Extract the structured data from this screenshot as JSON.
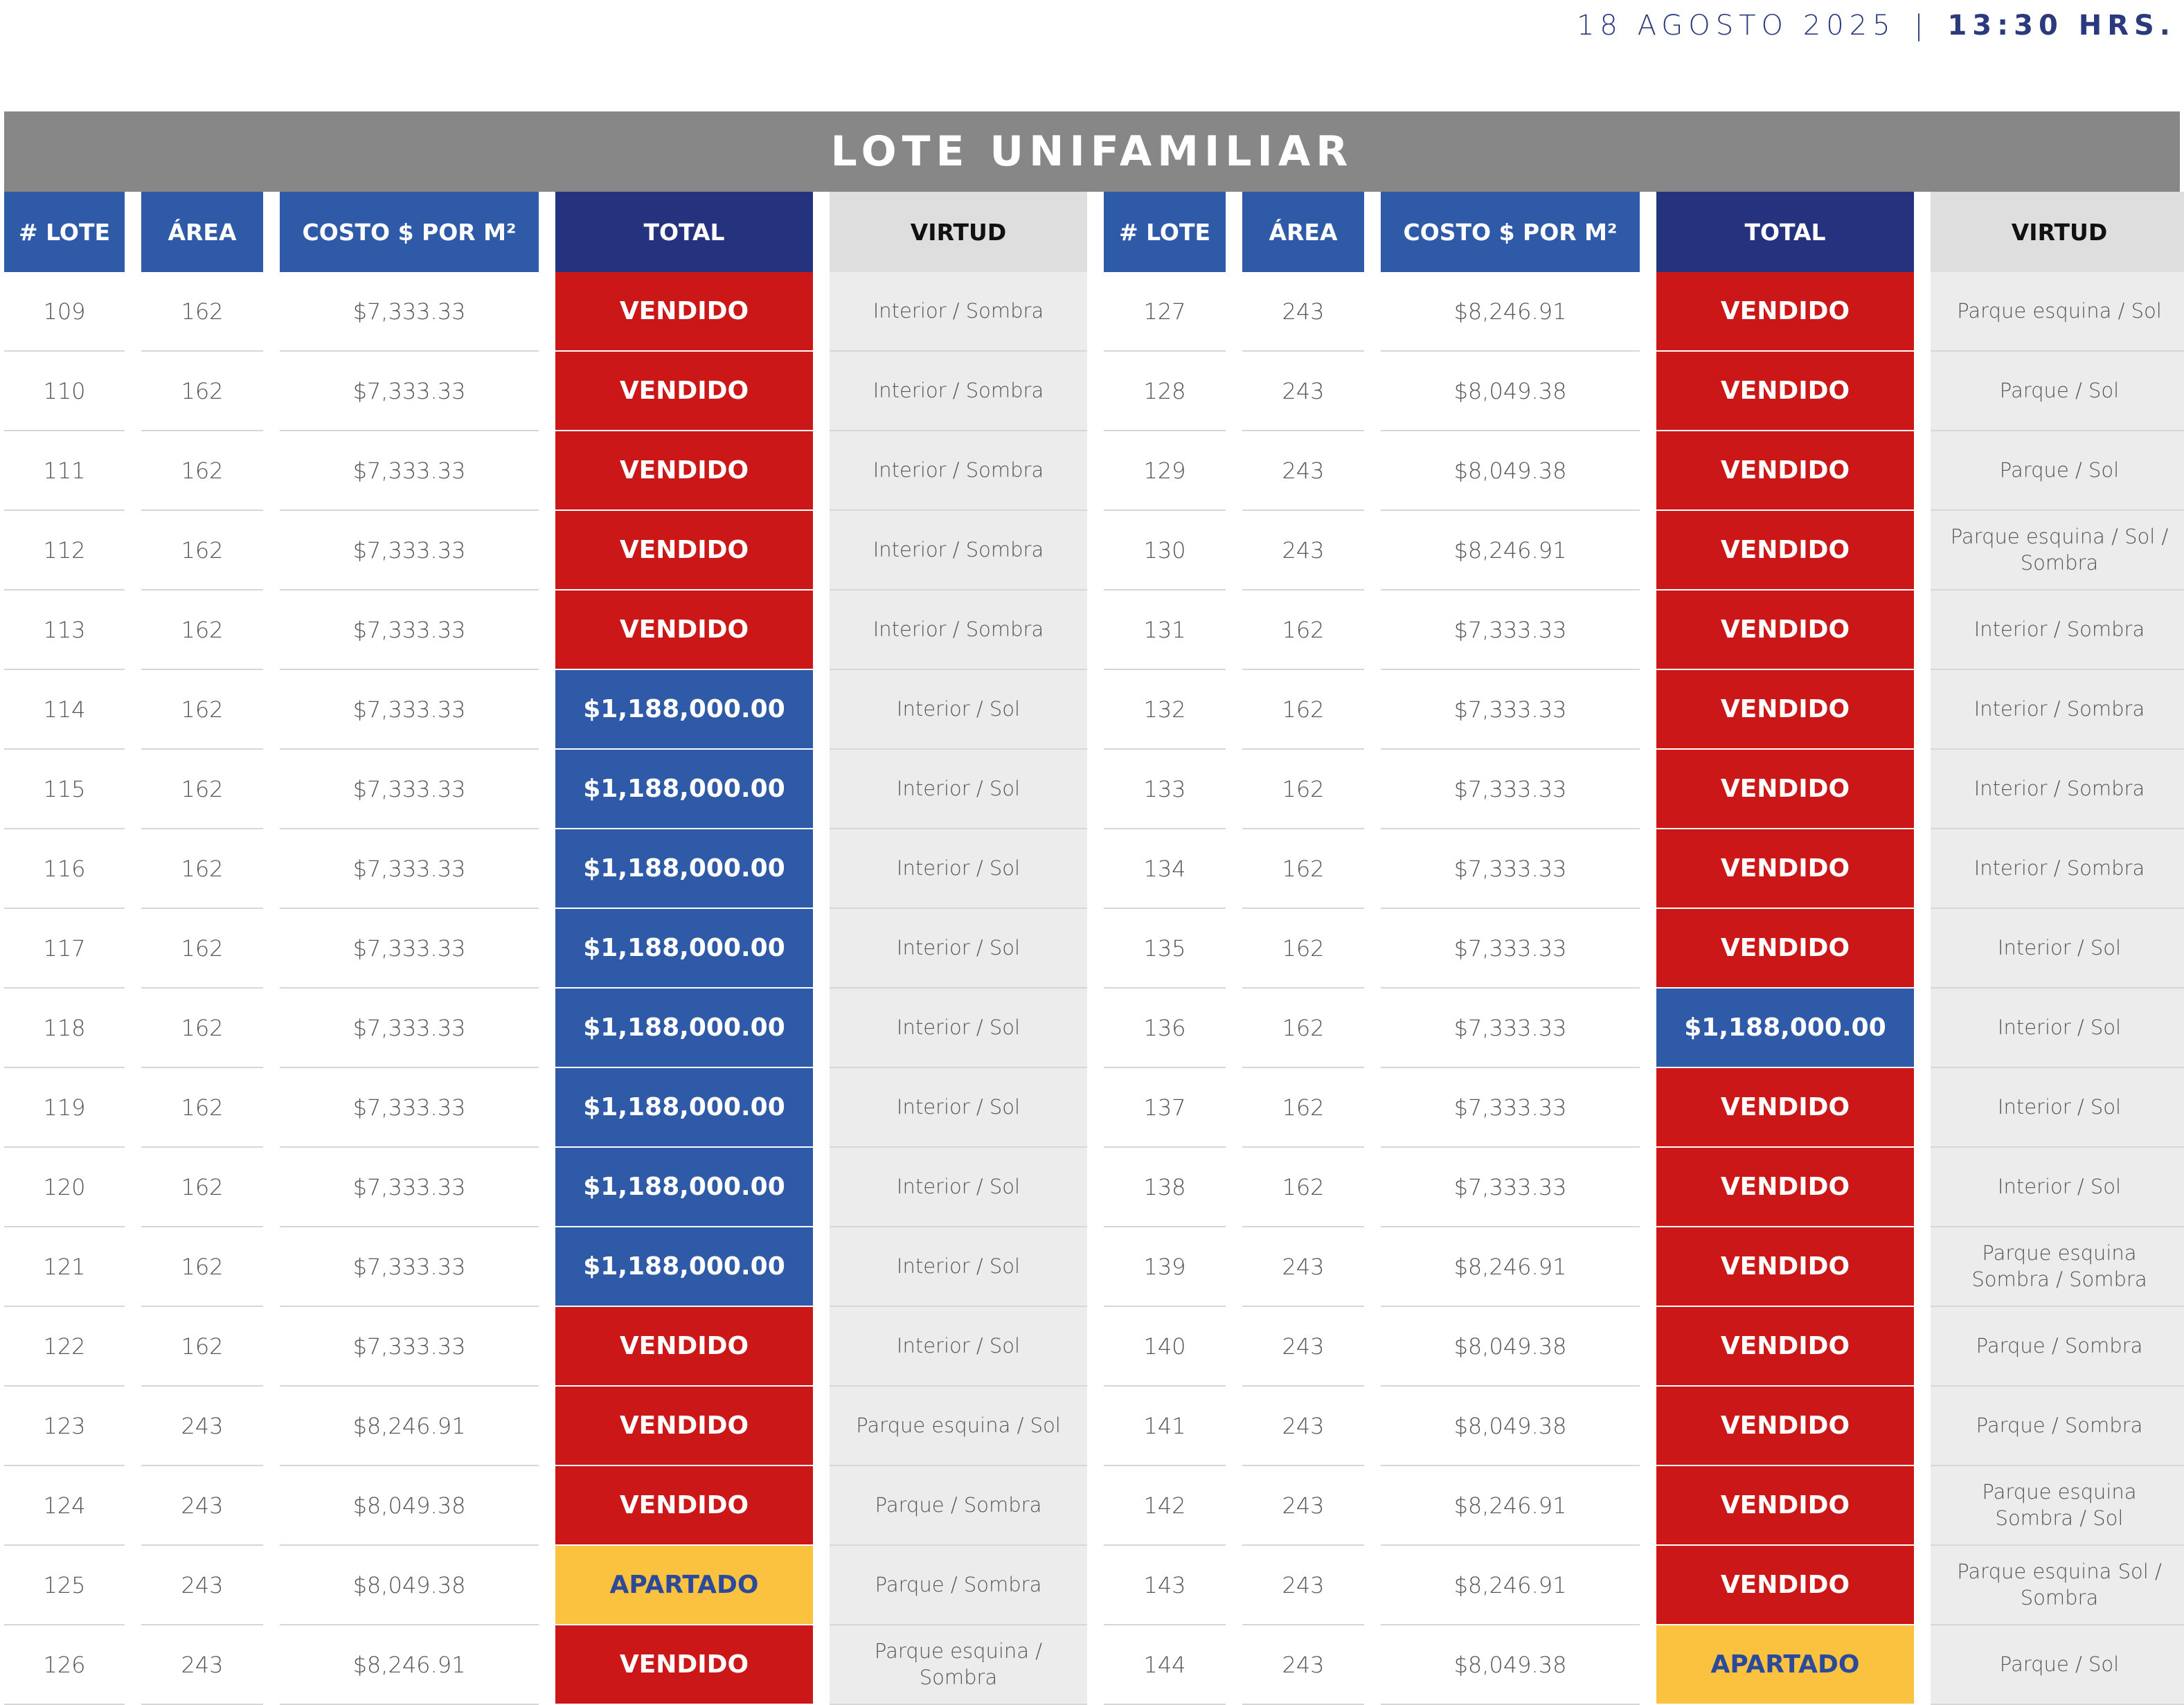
{
  "header": {
    "date": "18 AGOSTO 2025",
    "separator": "|",
    "time": "13:30 HRS."
  },
  "title": "LOTE UNIFAMILIAR",
  "columns": {
    "lote": "# LOTE",
    "area": "ÁREA",
    "costo": "COSTO $ POR M²",
    "total": "TOTAL",
    "virtud": "VIRTUD"
  },
  "status_colors": {
    "vendido": "#cc1719",
    "price": "#2f5aa8",
    "apartado": "#fbc23f"
  },
  "rows": [
    {
      "left": {
        "lote": "109",
        "area": "162",
        "costo": "$7,333.33",
        "total": "VENDIDO",
        "status": "vendido",
        "virtud": "Interior / Sombra"
      },
      "right": {
        "lote": "127",
        "area": "243",
        "costo": "$8,246.91",
        "total": "VENDIDO",
        "status": "vendido",
        "virtud": "Parque esquina / Sol"
      }
    },
    {
      "left": {
        "lote": "110",
        "area": "162",
        "costo": "$7,333.33",
        "total": "VENDIDO",
        "status": "vendido",
        "virtud": "Interior / Sombra"
      },
      "right": {
        "lote": "128",
        "area": "243",
        "costo": "$8,049.38",
        "total": "VENDIDO",
        "status": "vendido",
        "virtud": "Parque / Sol"
      }
    },
    {
      "left": {
        "lote": "111",
        "area": "162",
        "costo": "$7,333.33",
        "total": "VENDIDO",
        "status": "vendido",
        "virtud": "Interior / Sombra"
      },
      "right": {
        "lote": "129",
        "area": "243",
        "costo": "$8,049.38",
        "total": "VENDIDO",
        "status": "vendido",
        "virtud": "Parque / Sol"
      }
    },
    {
      "left": {
        "lote": "112",
        "area": "162",
        "costo": "$7,333.33",
        "total": "VENDIDO",
        "status": "vendido",
        "virtud": "Interior / Sombra"
      },
      "right": {
        "lote": "130",
        "area": "243",
        "costo": "$8,246.91",
        "total": "VENDIDO",
        "status": "vendido",
        "virtud": "Parque esquina / Sol / Sombra"
      }
    },
    {
      "left": {
        "lote": "113",
        "area": "162",
        "costo": "$7,333.33",
        "total": "VENDIDO",
        "status": "vendido",
        "virtud": "Interior / Sombra"
      },
      "right": {
        "lote": "131",
        "area": "162",
        "costo": "$7,333.33",
        "total": "VENDIDO",
        "status": "vendido",
        "virtud": "Interior / Sombra"
      }
    },
    {
      "left": {
        "lote": "114",
        "area": "162",
        "costo": "$7,333.33",
        "total": "$1,188,000.00",
        "status": "price",
        "virtud": "Interior / Sol"
      },
      "right": {
        "lote": "132",
        "area": "162",
        "costo": "$7,333.33",
        "total": "VENDIDO",
        "status": "vendido",
        "virtud": "Interior / Sombra"
      }
    },
    {
      "left": {
        "lote": "115",
        "area": "162",
        "costo": "$7,333.33",
        "total": "$1,188,000.00",
        "status": "price",
        "virtud": "Interior / Sol"
      },
      "right": {
        "lote": "133",
        "area": "162",
        "costo": "$7,333.33",
        "total": "VENDIDO",
        "status": "vendido",
        "virtud": "Interior / Sombra"
      }
    },
    {
      "left": {
        "lote": "116",
        "area": "162",
        "costo": "$7,333.33",
        "total": "$1,188,000.00",
        "status": "price",
        "virtud": "Interior / Sol"
      },
      "right": {
        "lote": "134",
        "area": "162",
        "costo": "$7,333.33",
        "total": "VENDIDO",
        "status": "vendido",
        "virtud": "Interior / Sombra"
      }
    },
    {
      "left": {
        "lote": "117",
        "area": "162",
        "costo": "$7,333.33",
        "total": "$1,188,000.00",
        "status": "price",
        "virtud": "Interior / Sol"
      },
      "right": {
        "lote": "135",
        "area": "162",
        "costo": "$7,333.33",
        "total": "VENDIDO",
        "status": "vendido",
        "virtud": "Interior / Sol"
      }
    },
    {
      "left": {
        "lote": "118",
        "area": "162",
        "costo": "$7,333.33",
        "total": "$1,188,000.00",
        "status": "price",
        "virtud": "Interior / Sol"
      },
      "right": {
        "lote": "136",
        "area": "162",
        "costo": "$7,333.33",
        "total": "$1,188,000.00",
        "status": "price",
        "virtud": "Interior / Sol"
      }
    },
    {
      "left": {
        "lote": "119",
        "area": "162",
        "costo": "$7,333.33",
        "total": "$1,188,000.00",
        "status": "price",
        "virtud": "Interior / Sol"
      },
      "right": {
        "lote": "137",
        "area": "162",
        "costo": "$7,333.33",
        "total": "VENDIDO",
        "status": "vendido",
        "virtud": "Interior / Sol"
      }
    },
    {
      "left": {
        "lote": "120",
        "area": "162",
        "costo": "$7,333.33",
        "total": "$1,188,000.00",
        "status": "price",
        "virtud": "Interior / Sol"
      },
      "right": {
        "lote": "138",
        "area": "162",
        "costo": "$7,333.33",
        "total": "VENDIDO",
        "status": "vendido",
        "virtud": "Interior / Sol"
      }
    },
    {
      "left": {
        "lote": "121",
        "area": "162",
        "costo": "$7,333.33",
        "total": "$1,188,000.00",
        "status": "price",
        "virtud": "Interior / Sol"
      },
      "right": {
        "lote": "139",
        "area": "243",
        "costo": "$8,246.91",
        "total": "VENDIDO",
        "status": "vendido",
        "virtud": "Parque esquina Sombra / Sombra"
      }
    },
    {
      "left": {
        "lote": "122",
        "area": "162",
        "costo": "$7,333.33",
        "total": "VENDIDO",
        "status": "vendido",
        "virtud": "Interior / Sol"
      },
      "right": {
        "lote": "140",
        "area": "243",
        "costo": "$8,049.38",
        "total": "VENDIDO",
        "status": "vendido",
        "virtud": "Parque / Sombra"
      }
    },
    {
      "left": {
        "lote": "123",
        "area": "243",
        "costo": "$8,246.91",
        "total": "VENDIDO",
        "status": "vendido",
        "virtud": "Parque esquina / Sol"
      },
      "right": {
        "lote": "141",
        "area": "243",
        "costo": "$8,049.38",
        "total": "VENDIDO",
        "status": "vendido",
        "virtud": "Parque / Sombra"
      }
    },
    {
      "left": {
        "lote": "124",
        "area": "243",
        "costo": "$8,049.38",
        "total": "VENDIDO",
        "status": "vendido",
        "virtud": "Parque / Sombra"
      },
      "right": {
        "lote": "142",
        "area": "243",
        "costo": "$8,246.91",
        "total": "VENDIDO",
        "status": "vendido",
        "virtud": "Parque esquina Sombra / Sol"
      }
    },
    {
      "left": {
        "lote": "125",
        "area": "243",
        "costo": "$8,049.38",
        "total": "APARTADO",
        "status": "apartado",
        "virtud": "Parque / Sombra"
      },
      "right": {
        "lote": "143",
        "area": "243",
        "costo": "$8,246.91",
        "total": "VENDIDO",
        "status": "vendido",
        "virtud": "Parque esquina Sol / Sombra"
      }
    },
    {
      "left": {
        "lote": "126",
        "area": "243",
        "costo": "$8,246.91",
        "total": "VENDIDO",
        "status": "vendido",
        "virtud": "Parque esquina / Sombra"
      },
      "right": {
        "lote": "144",
        "area": "243",
        "costo": "$8,049.38",
        "total": "APARTADO",
        "status": "apartado",
        "virtud": "Parque / Sol"
      }
    }
  ]
}
